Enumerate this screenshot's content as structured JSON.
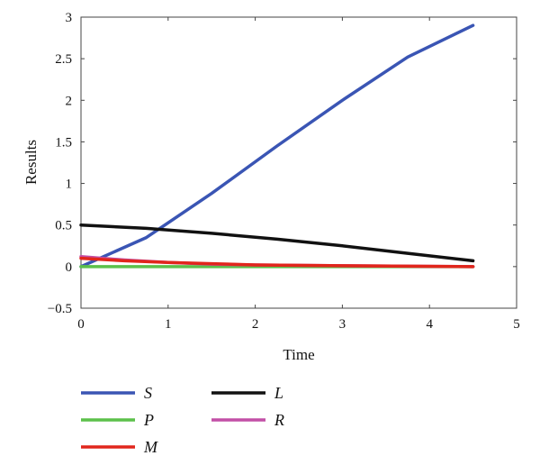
{
  "chart_data": {
    "type": "line",
    "xlabel": "Time",
    "ylabel": "Results",
    "xlim": [
      0,
      5
    ],
    "ylim": [
      -0.5,
      3
    ],
    "xticks": [
      "0",
      "1",
      "2",
      "3",
      "4",
      "5"
    ],
    "yticks": [
      "−0.5",
      "0",
      "0.5",
      "1",
      "1.5",
      "2",
      "2.5",
      "3"
    ],
    "grid": false,
    "legend_position": "bottom",
    "series": [
      {
        "name": "S",
        "color": "#3a55b4",
        "x": [
          0,
          0.75,
          1.5,
          2.25,
          3,
          3.75,
          4.5
        ],
        "y": [
          0,
          0.35,
          0.88,
          1.45,
          2.0,
          2.52,
          2.9
        ]
      },
      {
        "name": "L",
        "color": "#111111",
        "x": [
          0,
          0.75,
          1.5,
          2.25,
          3,
          3.75,
          4.5
        ],
        "y": [
          0.5,
          0.46,
          0.4,
          0.33,
          0.25,
          0.16,
          0.07
        ]
      },
      {
        "name": "P",
        "color": "#5cc04a",
        "x": [
          0,
          0.75,
          1.5,
          2.25,
          3,
          3.75,
          4.5
        ],
        "y": [
          0,
          0,
          0,
          0,
          0,
          0,
          0
        ]
      },
      {
        "name": "R",
        "color": "#c24fa6",
        "x": [
          0,
          0.5,
          1,
          1.5,
          2,
          3,
          4.5
        ],
        "y": [
          0.12,
          0.08,
          0.05,
          0.03,
          0.02,
          0.01,
          0
        ]
      },
      {
        "name": "M",
        "color": "#e1261c",
        "x": [
          0,
          0.5,
          1,
          1.5,
          2,
          3,
          4.5
        ],
        "y": [
          0.1,
          0.07,
          0.05,
          0.035,
          0.02,
          0.01,
          0
        ]
      }
    ],
    "legend_order": [
      "S",
      "L",
      "P",
      "R",
      "M"
    ]
  }
}
